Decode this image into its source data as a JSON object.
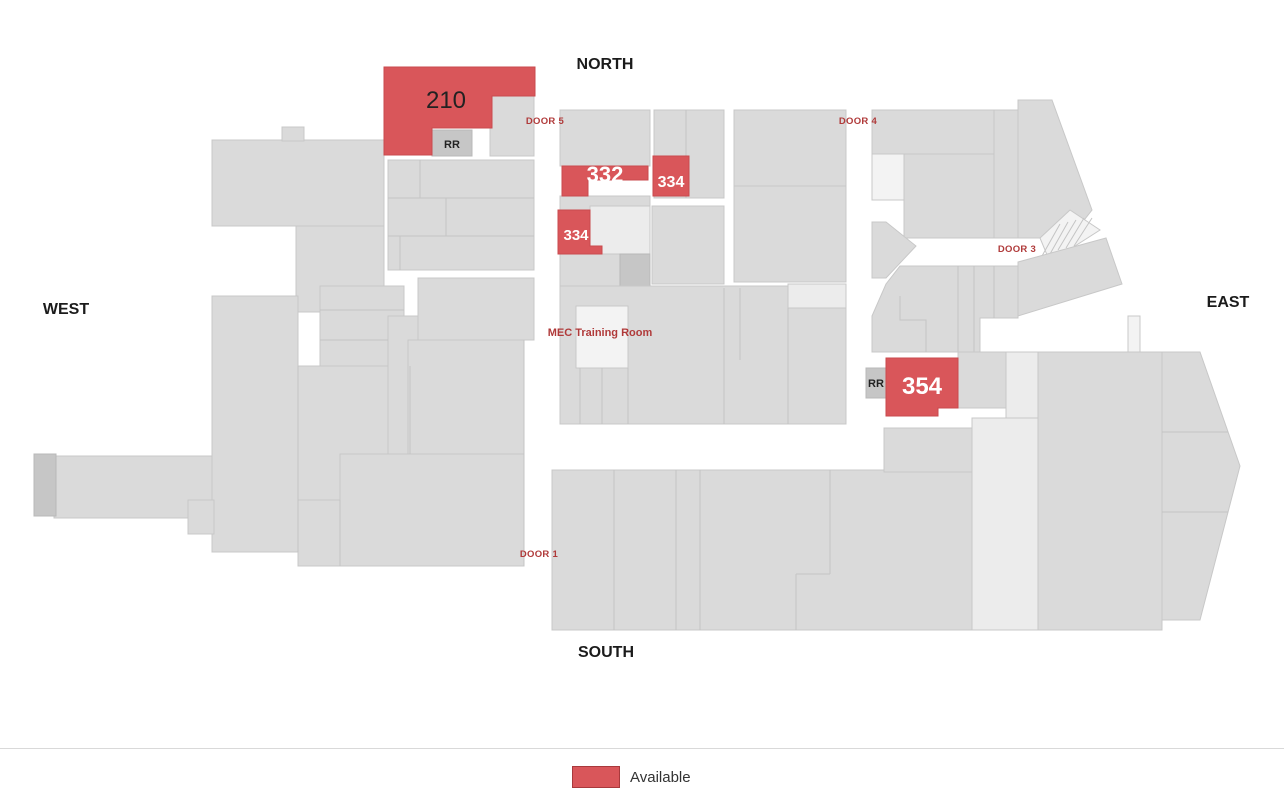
{
  "compass": {
    "north": "NORTH",
    "south": "SOUTH",
    "east": "EAST",
    "west": "WEST"
  },
  "doors": {
    "door1": "DOOR 1",
    "door3": "DOOR 3",
    "door4": "DOOR 4",
    "door5": "DOOR 5"
  },
  "rooms": {
    "training": "MEC Training Room",
    "rr_north": "RR",
    "rr_east": "RR"
  },
  "units": [
    {
      "number": "210",
      "status": "Available"
    },
    {
      "number": "332",
      "status": "Available"
    },
    {
      "number": "334",
      "status": "Available"
    },
    {
      "number": "334",
      "status": "Available"
    },
    {
      "number": "354",
      "status": "Available"
    }
  ],
  "legend": {
    "label": "Available",
    "color": "#d9565a"
  },
  "colors": {
    "available": "#d9565a",
    "building": "#dadada",
    "label_red": "#b03a3a"
  }
}
